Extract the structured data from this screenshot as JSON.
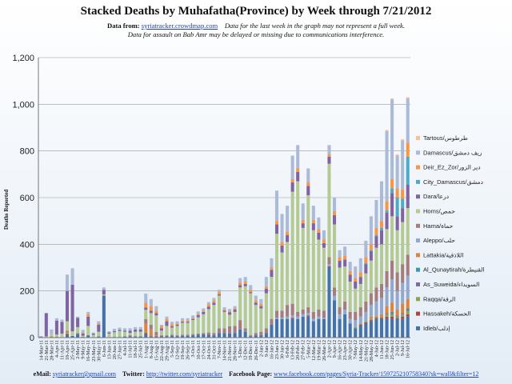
{
  "header": {
    "title": "Stacked Deaths by Muhafatha(Province) by Week through 7/21/2012",
    "data_from_label": "Data from:",
    "data_from_link": "syriatracker.crowdmap.com",
    "note1": "Data for the last week in the graph may not represent a full week.",
    "note2": "Data for assault on Bab Amr may be delayed or missing due to communications interference."
  },
  "footer": {
    "email_label": "eMail:",
    "email": "syriatracker@gmail.com",
    "twitter_label": "Twitter:",
    "twitter": "http://twitter.com/syriatracker",
    "facebook_label": "Facebook Page:",
    "facebook": "www.facebook.com/pages/Syria-Tracker/159725210758340?sk=wall&filter=12"
  },
  "chart_data": {
    "type": "bar",
    "stacked": true,
    "ylabel": "Deaths Reported",
    "ylim": [
      0,
      1200
    ],
    "yticks": [
      0,
      200,
      400,
      600,
      800,
      1000,
      1200
    ],
    "ytick_labels": [
      "0",
      "200",
      "400",
      "600",
      "800",
      "1,000",
      "1,200"
    ],
    "grid": true,
    "legend_position": "right",
    "categories": [
      "14-Mar-11",
      "21-Mar-11",
      "28-Mar-11",
      "4-Apr-11",
      "11-Apr-11",
      "18-Apr-11",
      "25-Apr-11",
      "2-May-11",
      "9-May-11",
      "16-May-11",
      "23-May-11",
      "30-May-11",
      "6-Jun-11",
      "13-Jun-11",
      "20-Jun-11",
      "27-Jun-11",
      "4-Jul-11",
      "11-Jul-11",
      "18-Jul-11",
      "25-Jul-11",
      "1-Aug-11",
      "8-Aug-11",
      "15-Aug-11",
      "22-Aug-11",
      "29-Aug-11",
      "5-Sep-11",
      "12-Sep-11",
      "19-Sep-11",
      "26-Sep-11",
      "3-Oct-11",
      "10-Oct-11",
      "17-Oct-11",
      "24-Oct-11",
      "31-Oct-11",
      "7-Nov-11",
      "14-Nov-11",
      "21-Nov-11",
      "28-Nov-11",
      "5-Dec-11",
      "12-Dec-11",
      "19-Dec-11",
      "26-Dec-11",
      "2-Jan-12",
      "9-Jan-12",
      "16-Jan-12",
      "23-Jan-12",
      "30-Jan-12",
      "6-Feb-12",
      "13-Feb-12",
      "20-Feb-12",
      "27-Feb-12",
      "5-Mar-12",
      "12-Mar-12",
      "19-Mar-12",
      "26-Mar-12",
      "2-Apr-12",
      "9-Apr-12",
      "16-Apr-12",
      "23-Apr-12",
      "30-Apr-12",
      "7-May-12",
      "14-May-12",
      "21-May-12",
      "28-May-12",
      "4-Jun-12",
      "11-Jun-12",
      "18-Jun-12",
      "25-Jun-12",
      "2-Jul-12",
      "9-Jul-12",
      "16-Jul-12"
    ],
    "xtick_labels": [
      "14-Mar-11",
      "21-Mar-11",
      "28-Mar-11",
      "4-Apr-11",
      "11-Apr-11",
      "18-Apr-11",
      "25-Apr-11",
      "2-May-11",
      "9-May-11",
      "16-May-11",
      "23-May-11",
      "30-May-11",
      "6-Jun-11",
      "13-Jun-11",
      "20-Jun-11",
      "27-Jun-11",
      "4-Jul-11",
      "11-Jul-11",
      "18-Jul-11",
      "25-Jul-11",
      "1-Aug-11",
      "8-Aug-11",
      "15-Aug-11",
      "22-Aug-11",
      "29-Aug-11",
      "5-Sep-11",
      "12-Sep-11",
      "19-Sep-11",
      "26-Sep-11",
      "3-Oct-11",
      "10-Oct-11",
      "17-Oct-11",
      "24-Oct-11",
      "31-Oct-11",
      "7-Nov-11",
      "14-Nov-11",
      "21-Nov-11",
      "28-Nov-11",
      "5-Dec-11",
      "12-Dec-11",
      "19-Dec-11",
      "26-Dec-11",
      "2-Jan-12",
      "9-Jan-12",
      "16-Jan-12",
      "23-Jan-12",
      "30-Jan-12",
      "6-Feb-12",
      "13-Feb-12",
      "20-Feb-12",
      "27-Feb-12",
      "5-Mar-12",
      "12-Mar-12",
      "19-Mar-12",
      "26-Mar-12",
      "2-Apr-12",
      "9-Apr-12",
      "16-Apr-12",
      "23-Apr-12",
      "30-Apr-12",
      "7-May-12",
      "14-May-12",
      "21-May-12",
      "28-May-12",
      "4-Jun-12",
      "11-Jun-12",
      "18-Jun-12",
      "25-Jun-12",
      "2-Jul-12",
      "9-Jul-12",
      "16-Jul-12"
    ],
    "series": [
      {
        "name": "Idleb/إدلب",
        "color": "#4572a7",
        "values": [
          1,
          2,
          0,
          3,
          2,
          10,
          7,
          15,
          3,
          10,
          2,
          5,
          180,
          2,
          3,
          3,
          5,
          5,
          5,
          5,
          14,
          5,
          5,
          5,
          5,
          8,
          5,
          8,
          8,
          10,
          12,
          15,
          12,
          10,
          20,
          20,
          18,
          20,
          35,
          25,
          5,
          10,
          10,
          20,
          55,
          80,
          80,
          80,
          80,
          80,
          90,
          90,
          70,
          80,
          80,
          300,
          160,
          80,
          100,
          60,
          40,
          50,
          60,
          70,
          80,
          80,
          80,
          80,
          80,
          80,
          90
        ]
      },
      {
        "name": "Hassakeh/الحسكة",
        "color": "#aa4643",
        "values": [
          0,
          0,
          0,
          0,
          0,
          5,
          0,
          0,
          0,
          0,
          0,
          0,
          0,
          0,
          0,
          0,
          0,
          0,
          0,
          0,
          5,
          0,
          0,
          0,
          0,
          0,
          0,
          0,
          0,
          0,
          0,
          0,
          0,
          0,
          0,
          0,
          0,
          0,
          0,
          0,
          0,
          0,
          0,
          0,
          0,
          0,
          0,
          0,
          5,
          0,
          0,
          5,
          0,
          0,
          0,
          5,
          0,
          0,
          0,
          0,
          0,
          5,
          5,
          5,
          5,
          5,
          10,
          10,
          5,
          10,
          10
        ]
      },
      {
        "name": "Raqqa/الرقة",
        "color": "#89a54e",
        "values": [
          0,
          0,
          0,
          0,
          0,
          5,
          0,
          0,
          0,
          0,
          0,
          0,
          0,
          0,
          0,
          0,
          0,
          0,
          0,
          0,
          5,
          0,
          0,
          0,
          0,
          0,
          0,
          0,
          0,
          0,
          0,
          0,
          0,
          0,
          0,
          0,
          0,
          0,
          0,
          0,
          0,
          0,
          0,
          0,
          0,
          0,
          0,
          0,
          0,
          0,
          0,
          0,
          0,
          0,
          0,
          0,
          0,
          0,
          0,
          0,
          5,
          5,
          5,
          5,
          5,
          5,
          10,
          10,
          5,
          10,
          15
        ]
      },
      {
        "name": "As_Suweida/السويداء",
        "color": "#80699b",
        "values": [
          0,
          0,
          0,
          0,
          0,
          0,
          0,
          0,
          0,
          0,
          0,
          0,
          0,
          0,
          0,
          0,
          0,
          0,
          0,
          0,
          0,
          0,
          0,
          0,
          0,
          0,
          0,
          0,
          0,
          0,
          0,
          0,
          0,
          0,
          0,
          0,
          0,
          0,
          0,
          0,
          0,
          0,
          0,
          0,
          0,
          0,
          0,
          0,
          0,
          0,
          0,
          0,
          0,
          0,
          0,
          0,
          0,
          0,
          0,
          0,
          0,
          0,
          0,
          0,
          0,
          0,
          5,
          5,
          5,
          5,
          5
        ]
      },
      {
        "name": "Al_Qunaytirah/القنيطرة",
        "color": "#3d96ae",
        "values": [
          0,
          0,
          0,
          0,
          0,
          0,
          0,
          0,
          0,
          0,
          0,
          0,
          0,
          0,
          0,
          0,
          0,
          0,
          0,
          0,
          0,
          0,
          0,
          0,
          0,
          0,
          0,
          0,
          0,
          0,
          0,
          0,
          0,
          0,
          0,
          0,
          0,
          0,
          0,
          0,
          0,
          0,
          0,
          0,
          0,
          0,
          0,
          0,
          0,
          0,
          0,
          0,
          0,
          0,
          0,
          0,
          0,
          0,
          0,
          0,
          0,
          0,
          0,
          0,
          0,
          0,
          0,
          5,
          0,
          0,
          5
        ]
      },
      {
        "name": "Lattakia/اللاذقية",
        "color": "#db843d",
        "values": [
          0,
          0,
          5,
          0,
          0,
          5,
          0,
          0,
          0,
          0,
          0,
          0,
          0,
          0,
          0,
          0,
          0,
          0,
          0,
          0,
          35,
          30,
          5,
          0,
          0,
          0,
          0,
          0,
          0,
          0,
          0,
          0,
          0,
          0,
          0,
          0,
          0,
          0,
          0,
          0,
          0,
          0,
          0,
          0,
          0,
          0,
          0,
          0,
          0,
          0,
          0,
          0,
          0,
          0,
          0,
          0,
          0,
          0,
          0,
          0,
          0,
          0,
          0,
          10,
          5,
          10,
          30,
          40,
          25,
          40,
          40
        ]
      },
      {
        "name": "Aleppo/حلب",
        "color": "#92a8cd",
        "values": [
          0,
          0,
          0,
          0,
          0,
          0,
          0,
          0,
          0,
          0,
          0,
          0,
          0,
          0,
          0,
          0,
          0,
          0,
          0,
          0,
          0,
          0,
          0,
          0,
          0,
          0,
          0,
          0,
          0,
          0,
          0,
          0,
          0,
          0,
          0,
          0,
          0,
          0,
          0,
          0,
          0,
          0,
          0,
          0,
          0,
          5,
          5,
          10,
          10,
          10,
          10,
          10,
          10,
          10,
          5,
          10,
          20,
          20,
          20,
          20,
          30,
          30,
          40,
          50,
          60,
          70,
          80,
          100,
          80,
          90,
          100
        ]
      },
      {
        "name": "Hama/حماة",
        "color": "#a47d7c",
        "values": [
          0,
          0,
          0,
          0,
          0,
          5,
          0,
          5,
          0,
          0,
          0,
          0,
          0,
          0,
          0,
          0,
          0,
          5,
          0,
          0,
          20,
          20,
          15,
          5,
          5,
          5,
          5,
          5,
          5,
          5,
          5,
          5,
          10,
          10,
          20,
          20,
          30,
          30,
          40,
          15,
          5,
          10,
          15,
          20,
          25,
          30,
          30,
          50,
          50,
          20,
          20,
          25,
          30,
          30,
          30,
          30,
          35,
          30,
          35,
          30,
          35,
          40,
          45,
          50,
          60,
          60,
          70,
          80,
          80,
          80,
          90
        ]
      },
      {
        "name": "Homs/حمص",
        "color": "#b5ca92",
        "values": [
          1,
          3,
          10,
          10,
          15,
          40,
          20,
          25,
          5,
          40,
          10,
          20,
          5,
          15,
          20,
          25,
          20,
          10,
          20,
          20,
          40,
          50,
          70,
          20,
          40,
          30,
          40,
          50,
          50,
          60,
          70,
          80,
          100,
          120,
          140,
          70,
          50,
          60,
          140,
          180,
          180,
          120,
          100,
          150,
          180,
          330,
          250,
          270,
          480,
          560,
          350,
          480,
          350,
          300,
          270,
          400,
          270,
          170,
          150,
          130,
          100,
          100,
          120,
          140,
          170,
          170,
          180,
          190,
          180,
          180,
          200
        ]
      },
      {
        "name": "Dara/درعا",
        "color": "#8064a2",
        "values": [
          3,
          100,
          0,
          60,
          50,
          130,
          200,
          40,
          10,
          40,
          5,
          30,
          20,
          5,
          5,
          5,
          5,
          10,
          10,
          10,
          10,
          10,
          10,
          10,
          20,
          5,
          5,
          5,
          5,
          5,
          10,
          10,
          10,
          10,
          5,
          5,
          10,
          10,
          10,
          10,
          5,
          10,
          10,
          20,
          30,
          40,
          30,
          30,
          40,
          40,
          20,
          40,
          30,
          30,
          20,
          30,
          40,
          30,
          30,
          30,
          30,
          30,
          40,
          40,
          50,
          60,
          70,
          100,
          60,
          60,
          100
        ]
      },
      {
        "name": "City_Damascus/دمشق",
        "color": "#4bacc6",
        "values": [
          0,
          0,
          0,
          0,
          0,
          0,
          0,
          0,
          0,
          0,
          0,
          0,
          0,
          0,
          0,
          0,
          0,
          0,
          0,
          0,
          0,
          0,
          0,
          0,
          0,
          0,
          0,
          0,
          0,
          0,
          0,
          0,
          0,
          0,
          0,
          0,
          0,
          0,
          0,
          0,
          0,
          0,
          0,
          0,
          0,
          0,
          0,
          0,
          0,
          0,
          0,
          0,
          0,
          0,
          0,
          0,
          0,
          0,
          0,
          0,
          0,
          0,
          5,
          5,
          5,
          10,
          10,
          20,
          80,
          40,
          120
        ]
      },
      {
        "name": "Deir_Ez_Zor/دير الزور",
        "color": "#f79646",
        "values": [
          0,
          0,
          0,
          0,
          0,
          0,
          0,
          0,
          5,
          10,
          0,
          5,
          0,
          0,
          0,
          0,
          0,
          0,
          0,
          0,
          20,
          20,
          10,
          10,
          10,
          10,
          5,
          5,
          5,
          5,
          5,
          5,
          10,
          10,
          10,
          5,
          5,
          5,
          10,
          10,
          10,
          10,
          10,
          10,
          10,
          15,
          15,
          15,
          15,
          15,
          15,
          15,
          15,
          15,
          15,
          10,
          15,
          15,
          15,
          15,
          15,
          20,
          25,
          25,
          30,
          30,
          40,
          40,
          40,
          40,
          60
        ]
      },
      {
        "name": "Damascus/ريف دمشق",
        "color": "#aabad7",
        "values": [
          0,
          0,
          20,
          10,
          10,
          70,
          70,
          5,
          10,
          10,
          5,
          10,
          10,
          5,
          10,
          10,
          10,
          10,
          10,
          10,
          40,
          30,
          20,
          5,
          10,
          10,
          10,
          10,
          10,
          10,
          10,
          10,
          10,
          10,
          10,
          10,
          10,
          10,
          20,
          20,
          20,
          20,
          20,
          40,
          40,
          130,
          120,
          110,
          100,
          100,
          70,
          60,
          60,
          50,
          40,
          40,
          60,
          30,
          40,
          40,
          50,
          60,
          70,
          120,
          120,
          170,
          300,
          340,
          140,
          210,
          190
        ]
      },
      {
        "name": "Tartous/طرطوس",
        "color": "#fac090",
        "values": [
          0,
          0,
          0,
          0,
          0,
          0,
          0,
          0,
          0,
          0,
          0,
          0,
          0,
          0,
          0,
          0,
          0,
          0,
          0,
          0,
          0,
          0,
          0,
          0,
          0,
          0,
          0,
          0,
          0,
          0,
          0,
          0,
          0,
          0,
          0,
          0,
          0,
          0,
          0,
          0,
          0,
          0,
          0,
          0,
          0,
          0,
          0,
          0,
          0,
          0,
          0,
          0,
          0,
          0,
          0,
          0,
          0,
          0,
          0,
          0,
          0,
          0,
          0,
          0,
          0,
          0,
          5,
          5,
          5,
          5,
          5
        ]
      }
    ]
  }
}
